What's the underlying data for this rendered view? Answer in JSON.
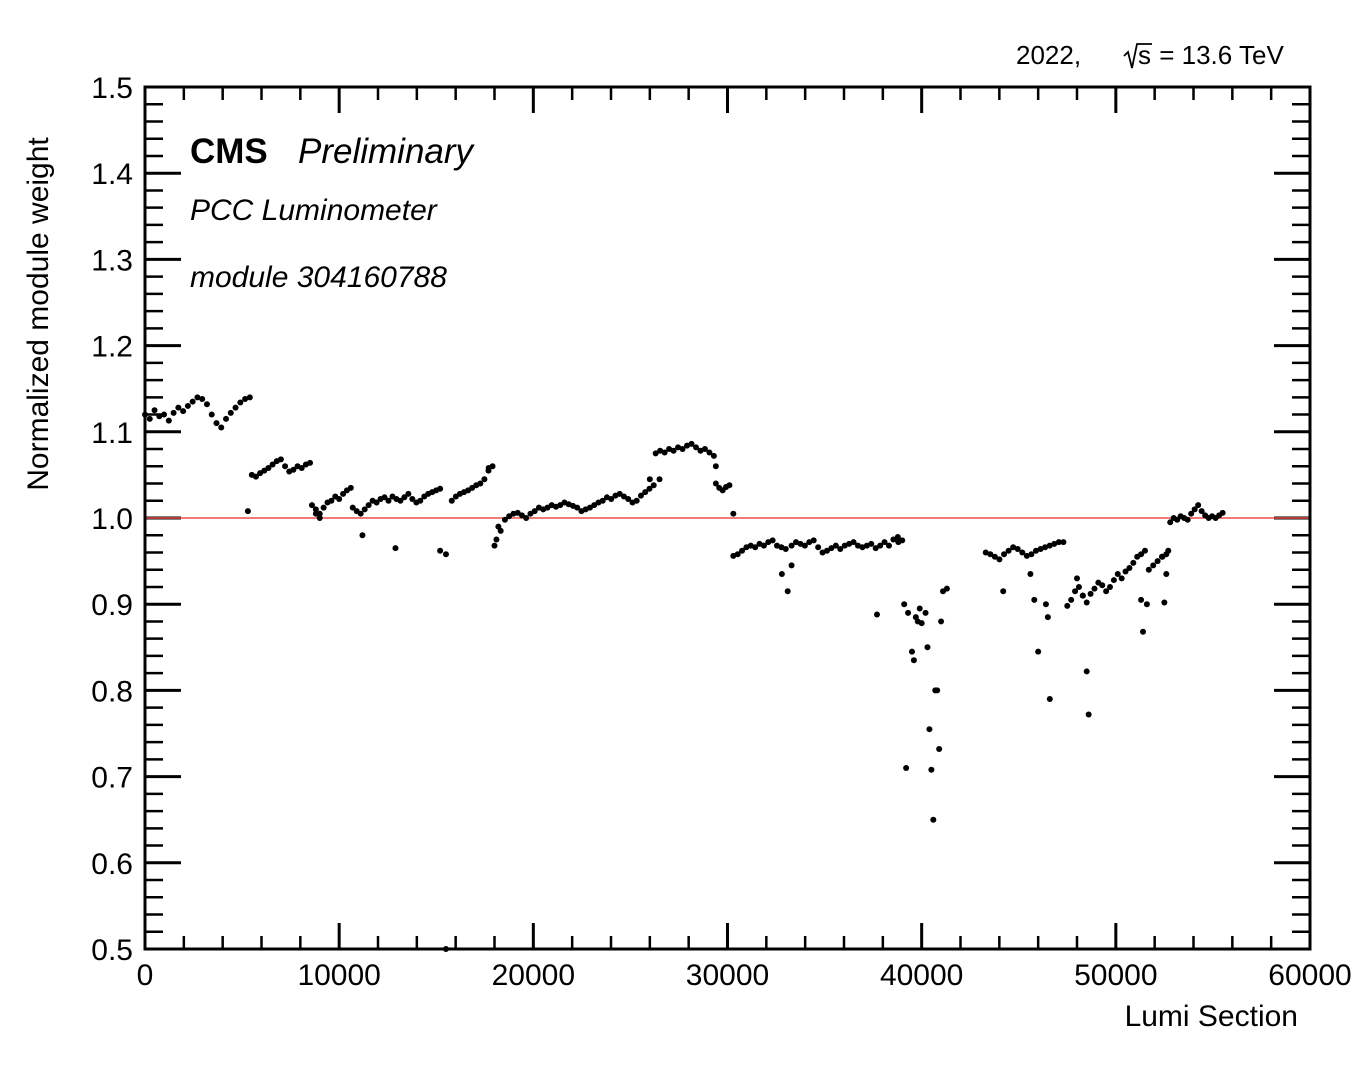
{
  "chart_data": {
    "type": "scatter",
    "xlabel": "Lumi Section",
    "ylabel": "Normalized module weight",
    "xlim": [
      0,
      60000
    ],
    "ylim": [
      0.5,
      1.5
    ],
    "x_ticks": [
      "0",
      "10000",
      "20000",
      "30000",
      "40000",
      "50000",
      "60000"
    ],
    "y_ticks": [
      "0.5",
      "0.6",
      "0.7",
      "0.8",
      "0.9",
      "1.0",
      "1.1",
      "1.2",
      "1.3",
      "1.4",
      "1.5"
    ],
    "reference_line": {
      "y": 1.0,
      "color": "#e8514a"
    },
    "marker_color": "#000000",
    "annotations": {
      "experiment": "CMS",
      "status": "Preliminary",
      "detector": "PCC Luminometer",
      "module": "module 304160788",
      "year": "2022,",
      "energy_symbol": "s",
      "energy_value": " = 13.6 TeV"
    },
    "segments": [
      {
        "x0": 0,
        "x1": 5400,
        "y": [
          1.12,
          1.115,
          1.125,
          1.118,
          1.12,
          1.113,
          1.122,
          1.128,
          1.124,
          1.13,
          1.135,
          1.14,
          1.138,
          1.132,
          1.12,
          1.11,
          1.105,
          1.115,
          1.122,
          1.128,
          1.134,
          1.138,
          1.14
        ]
      },
      {
        "x0": 5500,
        "x1": 8500,
        "y": [
          1.05,
          1.048,
          1.052,
          1.055,
          1.058,
          1.062,
          1.066,
          1.068,
          1.06,
          1.054,
          1.056,
          1.06,
          1.058,
          1.062,
          1.064
        ]
      },
      {
        "x0": 8600,
        "x1": 10600,
        "y": [
          1.015,
          1.01,
          1.005,
          1.012,
          1.018,
          1.02,
          1.025,
          1.022,
          1.028,
          1.032,
          1.035
        ]
      },
      {
        "x0": 10700,
        "x1": 15200,
        "y": [
          1.012,
          1.008,
          1.005,
          1.01,
          1.015,
          1.02,
          1.018,
          1.022,
          1.024,
          1.02,
          1.025,
          1.022,
          1.02,
          1.024,
          1.028,
          1.022,
          1.018,
          1.02,
          1.025,
          1.028,
          1.03,
          1.032,
          1.034
        ]
      },
      {
        "x0": 15800,
        "x1": 17900,
        "y": [
          1.02,
          1.025,
          1.028,
          1.03,
          1.032,
          1.035,
          1.038,
          1.04,
          1.045,
          1.055,
          1.06
        ]
      },
      {
        "x0": 18100,
        "x1": 26200,
        "y": [
          0.975,
          0.985,
          0.998,
          1.002,
          1.005,
          1.006,
          1.003,
          1.0,
          1.005,
          1.008,
          1.012,
          1.01,
          1.012,
          1.015,
          1.013,
          1.015,
          1.018,
          1.016,
          1.014,
          1.012,
          1.008,
          1.01,
          1.012,
          1.015,
          1.018,
          1.02,
          1.024,
          1.022,
          1.026,
          1.028,
          1.025,
          1.022,
          1.018,
          1.02,
          1.026,
          1.03,
          1.034,
          1.038
        ]
      },
      {
        "x0": 26300,
        "x1": 29300,
        "y": [
          1.075,
          1.078,
          1.076,
          1.08,
          1.078,
          1.082,
          1.08,
          1.084,
          1.086,
          1.082,
          1.078,
          1.08,
          1.076,
          1.072
        ]
      },
      {
        "x0": 29400,
        "x1": 30100,
        "y": [
          1.04,
          1.035,
          1.032,
          1.036,
          1.038
        ]
      },
      {
        "x0": 30300,
        "x1": 33000,
        "y": [
          0.956,
          0.958,
          0.962,
          0.966,
          0.968,
          0.966,
          0.97,
          0.968,
          0.972,
          0.974,
          0.968,
          0.966,
          0.964
        ]
      },
      {
        "x0": 33300,
        "x1": 39000,
        "y": [
          0.968,
          0.972,
          0.97,
          0.968,
          0.972,
          0.974,
          0.966,
          0.96,
          0.962,
          0.965,
          0.968,
          0.964,
          0.968,
          0.97,
          0.972,
          0.968,
          0.966,
          0.968,
          0.97,
          0.965,
          0.968,
          0.972,
          0.968,
          0.975,
          0.978,
          0.974
        ]
      },
      {
        "x0": 43300,
        "x1": 47300,
        "y": [
          0.96,
          0.958,
          0.955,
          0.952,
          0.958,
          0.962,
          0.966,
          0.964,
          0.96,
          0.956,
          0.958,
          0.962,
          0.964,
          0.966,
          0.968,
          0.97,
          0.972,
          0.972
        ]
      },
      {
        "x0": 47500,
        "x1": 51500,
        "y": [
          0.898,
          0.905,
          0.915,
          0.92,
          0.91,
          0.902,
          0.912,
          0.918,
          0.925,
          0.922,
          0.915,
          0.92,
          0.928,
          0.935,
          0.93,
          0.938,
          0.942,
          0.948,
          0.955,
          0.958,
          0.962
        ]
      },
      {
        "x0": 51700,
        "x1": 52600,
        "y": [
          0.94,
          0.945,
          0.95,
          0.955,
          0.958
        ]
      },
      {
        "x0": 52800,
        "x1": 55500,
        "y": [
          0.995,
          1.0,
          0.998,
          1.002,
          1.0,
          0.998,
          1.005,
          1.01,
          1.015,
          1.008,
          1.003,
          1.0,
          1.002,
          1.0,
          1.003,
          1.006
        ]
      }
    ],
    "scattered_points": [
      [
        5300,
        1.008
      ],
      [
        11200,
        0.98
      ],
      [
        12900,
        0.965
      ],
      [
        15200,
        0.962
      ],
      [
        15500,
        0.958
      ],
      [
        15500,
        0.5
      ],
      [
        18000,
        0.968
      ],
      [
        26000,
        1.045
      ],
      [
        26500,
        1.045
      ],
      [
        30300,
        1.005
      ],
      [
        32800,
        0.935
      ],
      [
        33100,
        0.915
      ],
      [
        33300,
        0.945
      ],
      [
        37700,
        0.888
      ],
      [
        38800,
        0.972
      ],
      [
        39100,
        0.9
      ],
      [
        39300,
        0.89
      ],
      [
        39200,
        0.71
      ],
      [
        39500,
        0.845
      ],
      [
        39600,
        0.835
      ],
      [
        39700,
        0.885
      ],
      [
        39800,
        0.88
      ],
      [
        39900,
        0.895
      ],
      [
        40000,
        0.878
      ],
      [
        40200,
        0.89
      ],
      [
        40300,
        0.85
      ],
      [
        40400,
        0.755
      ],
      [
        40500,
        0.708
      ],
      [
        40600,
        0.65
      ],
      [
        40700,
        0.8
      ],
      [
        40800,
        0.8
      ],
      [
        40900,
        0.732
      ],
      [
        41000,
        0.88
      ],
      [
        41100,
        0.915
      ],
      [
        41300,
        0.918
      ],
      [
        44200,
        0.915
      ],
      [
        45600,
        0.935
      ],
      [
        45800,
        0.905
      ],
      [
        46000,
        0.845
      ],
      [
        46400,
        0.9
      ],
      [
        46500,
        0.885
      ],
      [
        46600,
        0.79
      ],
      [
        48000,
        0.93
      ],
      [
        48300,
        0.91
      ],
      [
        48500,
        0.822
      ],
      [
        48600,
        0.772
      ],
      [
        51300,
        0.905
      ],
      [
        51400,
        0.868
      ],
      [
        51600,
        0.9
      ],
      [
        52400,
        0.955
      ],
      [
        52500,
        0.902
      ],
      [
        52600,
        0.935
      ],
      [
        52700,
        0.962
      ],
      [
        29400,
        1.06
      ],
      [
        17700,
        1.058
      ],
      [
        18200,
        0.99
      ],
      [
        8800,
        1.005
      ],
      [
        9000,
        1.0
      ]
    ]
  }
}
